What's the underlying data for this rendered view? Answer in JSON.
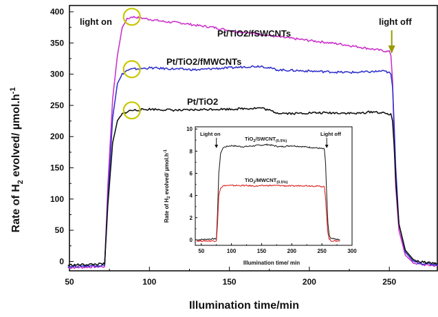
{
  "chart_data": [
    {
      "type": "line",
      "xlabel": "Illumination time/min",
      "ylabel": "Rate of H2 evolved/ µmol.h-1",
      "ylabel_parts": {
        "a": "Rate of H",
        "sub": "2",
        "b": " evolved/ ",
        "mu": "µ",
        "c": "mol.h",
        "sup": "-1"
      },
      "xlim": [
        50,
        280
      ],
      "ylim": [
        -15,
        410
      ],
      "xticks": [
        50,
        100,
        150,
        200,
        250
      ],
      "yticks": [
        0,
        50,
        100,
        150,
        200,
        250,
        300,
        350,
        400
      ],
      "series": [
        {
          "name": "Pt/TiO2/fSWCNTs",
          "color": "#cc33cc",
          "x": [
            49,
            72,
            74,
            77,
            80,
            83,
            86,
            89,
            95,
            100,
            110,
            120,
            130,
            140,
            150,
            160,
            170,
            180,
            190,
            200,
            210,
            220,
            230,
            240,
            245,
            248,
            250,
            251,
            252,
            253,
            254,
            256,
            260,
            265,
            270,
            280
          ],
          "y": [
            -10,
            -8,
            120,
            260,
            330,
            375,
            388,
            392,
            390,
            388,
            384,
            382,
            378,
            375,
            370,
            367,
            364,
            360,
            357,
            354,
            351,
            348,
            344,
            340,
            338,
            337,
            336,
            330,
            290,
            200,
            120,
            50,
            10,
            -2,
            -5,
            -7
          ]
        },
        {
          "name": "Pt/TiO2/fMWCNTs",
          "color": "#3333cc",
          "x": [
            49,
            72,
            74,
            77,
            80,
            83,
            86,
            89,
            95,
            100,
            110,
            120,
            130,
            140,
            150,
            160,
            170,
            180,
            190,
            200,
            210,
            220,
            230,
            240,
            245,
            248,
            250,
            251,
            252,
            253,
            254,
            256,
            260,
            265,
            270,
            280
          ],
          "y": [
            -8,
            -6,
            100,
            230,
            285,
            300,
            306,
            308,
            309,
            310,
            309,
            308,
            307,
            309,
            310,
            312,
            313,
            307,
            306,
            305,
            304,
            303,
            303,
            304,
            305,
            304,
            302,
            300,
            280,
            220,
            150,
            60,
            15,
            0,
            -3,
            -5
          ]
        },
        {
          "name": "Pt/TiO2",
          "color": "#111111",
          "x": [
            49,
            72,
            74,
            77,
            80,
            83,
            86,
            89,
            95,
            100,
            110,
            120,
            130,
            140,
            150,
            160,
            170,
            180,
            190,
            200,
            210,
            220,
            230,
            240,
            245,
            248,
            250,
            251,
            252,
            253,
            254,
            256,
            260,
            265,
            270,
            280
          ],
          "y": [
            -6,
            -4,
            90,
            190,
            225,
            236,
            240,
            242,
            243,
            244,
            243,
            242,
            243,
            244,
            244,
            245,
            246,
            238,
            237,
            238,
            238,
            238,
            237,
            240,
            238,
            237,
            236,
            235,
            225,
            185,
            130,
            60,
            18,
            3,
            -1,
            -3
          ]
        }
      ],
      "annotations": {
        "light_on": "light on",
        "light_off": "light off",
        "label_swcnt": "Pt/TiO2/fSWCNTs",
        "label_mwcnt": "Pt/TiO2/fMWCNTs",
        "label_tio2": "Pt/TiO2"
      },
      "circle_color": "#c8c800",
      "arrow_color": "#999900"
    },
    {
      "type": "line",
      "role": "inset",
      "xlabel": "Illumination time/ min",
      "ylabel_parts": {
        "a": "Rate of H",
        "sub": "2",
        "b": " evolved/ ",
        "mu": "µ",
        "c": "mol.h",
        "sup": "-1"
      },
      "xlim": [
        40,
        300
      ],
      "ylim": [
        -0.5,
        10.2
      ],
      "xticks": [
        50,
        100,
        150,
        200,
        250,
        300
      ],
      "yticks": [
        0,
        2,
        4,
        6,
        8,
        10
      ],
      "series": [
        {
          "label_main": "TiO",
          "label_sub1": "2",
          "label_mid": "/SWCNT",
          "label_sub2": "(0.5%)",
          "color": "#222222",
          "x": [
            42,
            75,
            77,
            79,
            82,
            86,
            90,
            100,
            120,
            140,
            160,
            180,
            200,
            220,
            240,
            254,
            256,
            258,
            260,
            262,
            265,
            280
          ],
          "y": [
            0,
            0.1,
            2.5,
            6,
            7.8,
            8.3,
            8.4,
            8.5,
            8.4,
            8.5,
            8.6,
            8.4,
            8.5,
            8.4,
            8.3,
            8.2,
            7,
            4,
            1.5,
            0.4,
            0.1,
            0
          ]
        },
        {
          "label_main": "TiO",
          "label_sub1": "2",
          "label_mid": "/MWCNT",
          "label_sub2": "(0.5%)",
          "color": "#dd2222",
          "x": [
            42,
            75,
            77,
            79,
            82,
            86,
            90,
            100,
            120,
            140,
            160,
            180,
            200,
            220,
            240,
            254,
            256,
            258,
            260,
            262,
            265,
            280
          ],
          "y": [
            -0.1,
            -0.1,
            1.5,
            4,
            4.7,
            4.85,
            4.9,
            4.9,
            4.9,
            4.85,
            4.9,
            4.9,
            4.85,
            4.9,
            4.85,
            4.8,
            3.8,
            2,
            0.6,
            0.1,
            -0.1,
            -0.1
          ]
        }
      ],
      "annotations": {
        "light_on": "Light on",
        "light_off": "Light off"
      }
    }
  ]
}
